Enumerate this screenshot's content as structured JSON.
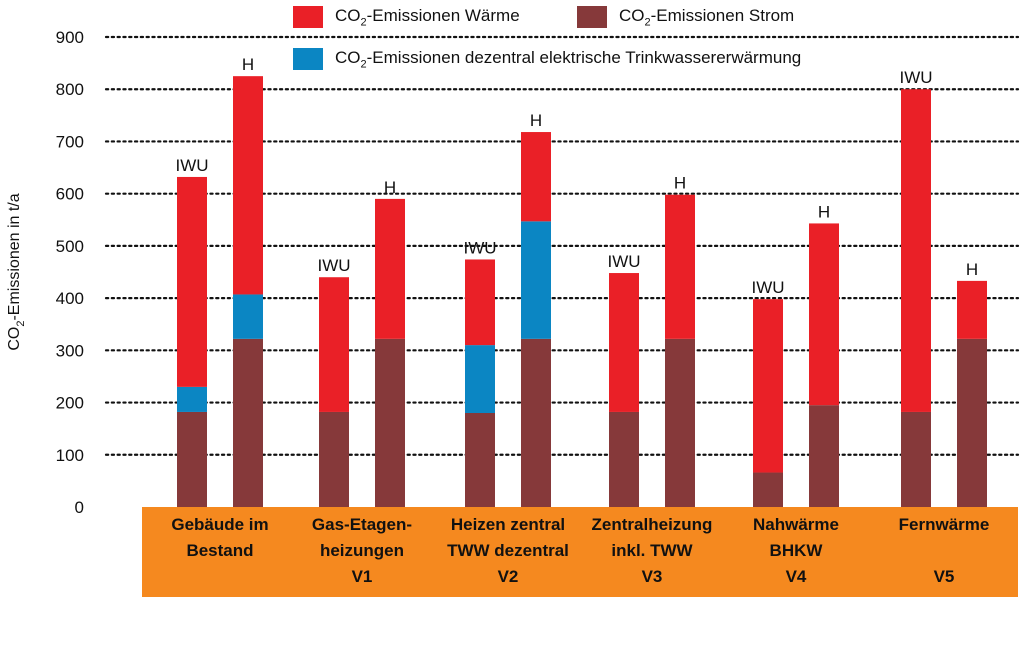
{
  "chart_data": {
    "type": "bar",
    "stacked": true,
    "ylabel": "CO2-Emissionen in t/a",
    "ylim": [
      0,
      900
    ],
    "yticks": [
      0,
      100,
      200,
      300,
      400,
      500,
      600,
      700,
      800,
      900
    ],
    "grid": "dotted horizontal",
    "legend_position": "top",
    "colors": {
      "strom": "#86393a",
      "tww": "#0b86c3",
      "waerme": "#ea2027",
      "category_band": "#f5891f"
    },
    "legend": [
      {
        "key": "waerme",
        "pre": "CO",
        "sub": "2",
        "post": "-Emissionen Wärme"
      },
      {
        "key": "strom",
        "pre": "CO",
        "sub": "2",
        "post": "-Emissionen Strom"
      },
      {
        "key": "tww",
        "pre": "CO",
        "sub": "2",
        "post": "-Emissionen dezentral elektrische Trinkwassererwärmung"
      }
    ],
    "series_order": [
      "strom",
      "tww",
      "waerme"
    ],
    "groups": [
      {
        "label": [
          "Gebäude im",
          "Bestand"
        ],
        "bars": [
          {
            "label": "IWU",
            "strom": 182,
            "tww": 48,
            "waerme": 402
          },
          {
            "label": "H",
            "strom": 322,
            "tww": 85,
            "waerme": 418
          }
        ]
      },
      {
        "label": [
          "Gas-Etagen-",
          "heizungen",
          "V1"
        ],
        "bars": [
          {
            "label": "IWU",
            "strom": 182,
            "tww": 0,
            "waerme": 258
          },
          {
            "label": "H",
            "strom": 322,
            "tww": 0,
            "waerme": 268
          }
        ]
      },
      {
        "label": [
          "Heizen zentral",
          "TWW dezentral",
          "V2"
        ],
        "bars": [
          {
            "label": "IWU",
            "strom": 180,
            "tww": 130,
            "waerme": 164
          },
          {
            "label": "H",
            "strom": 322,
            "tww": 225,
            "waerme": 171
          }
        ]
      },
      {
        "label": [
          "Zentralheizung",
          "inkl. TWW",
          "V3"
        ],
        "bars": [
          {
            "label": "IWU",
            "strom": 182,
            "tww": 0,
            "waerme": 266
          },
          {
            "label": "H",
            "strom": 322,
            "tww": 0,
            "waerme": 276
          }
        ]
      },
      {
        "label": [
          "Nahwärme",
          "BHKW",
          "V4"
        ],
        "bars": [
          {
            "label": "IWU",
            "strom": 66,
            "tww": 0,
            "waerme": 332
          },
          {
            "label": "H",
            "strom": 195,
            "tww": 0,
            "waerme": 348
          }
        ]
      },
      {
        "label": [
          "Fernwärme",
          "",
          "V5"
        ],
        "bars": [
          {
            "label": "IWU",
            "strom": 182,
            "tww": 0,
            "waerme": 618
          },
          {
            "label": "H",
            "strom": 322,
            "tww": 0,
            "waerme": 111
          }
        ]
      }
    ]
  }
}
